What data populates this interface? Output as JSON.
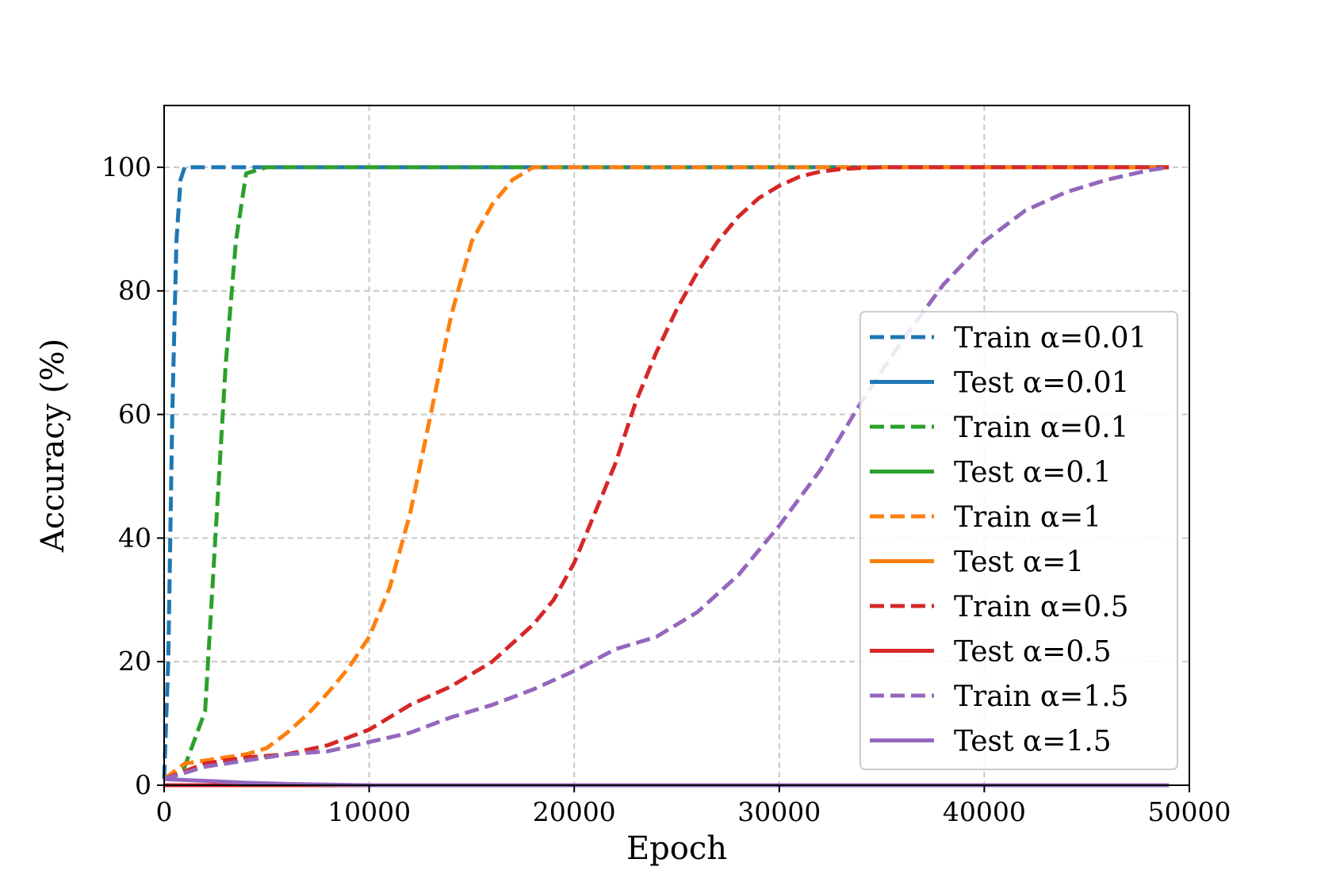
{
  "chart_data": {
    "type": "line",
    "title": "",
    "xlabel": "Epoch",
    "ylabel": "Accuracy (%)",
    "xlim": [
      0,
      50000
    ],
    "ylim": [
      0,
      110
    ],
    "xticks": [
      0,
      10000,
      20000,
      30000,
      40000,
      50000
    ],
    "yticks": [
      0,
      20,
      40,
      60,
      80,
      100
    ],
    "grid": true,
    "legend_placement": "center-right",
    "series": [
      {
        "name": "Train α=0.01",
        "style": "dashed",
        "color": "#1f77b4",
        "x": [
          0,
          200,
          400,
          600,
          800,
          1000,
          2000,
          5000,
          10000,
          20000,
          30000,
          40000,
          49000
        ],
        "y": [
          1,
          20,
          60,
          88,
          98,
          100,
          100,
          100,
          100,
          100,
          100,
          100,
          100
        ]
      },
      {
        "name": "Test α=0.01",
        "style": "solid",
        "color": "#1f77b4",
        "x": [
          0,
          49000
        ],
        "y": [
          0,
          0
        ]
      },
      {
        "name": "Train α=0.1",
        "style": "dashed",
        "color": "#2ca02c",
        "x": [
          0,
          1000,
          2000,
          2500,
          3000,
          3500,
          4000,
          5000,
          10000,
          20000,
          30000,
          40000,
          49000
        ],
        "y": [
          1,
          3,
          12,
          40,
          68,
          88,
          99,
          100,
          100,
          100,
          100,
          100,
          100
        ]
      },
      {
        "name": "Test α=0.1",
        "style": "solid",
        "color": "#2ca02c",
        "x": [
          0,
          49000
        ],
        "y": [
          0,
          0
        ]
      },
      {
        "name": "Train α=1",
        "style": "dashed",
        "color": "#ff7f0e",
        "x": [
          0,
          1000,
          2000,
          3000,
          4000,
          5000,
          6000,
          7000,
          8000,
          9000,
          10000,
          11000,
          12000,
          13000,
          14000,
          15000,
          16000,
          17000,
          18000,
          19000,
          20000,
          30000,
          40000,
          49000
        ],
        "y": [
          1,
          3.5,
          4,
          4.5,
          5,
          6,
          8.5,
          11.5,
          15,
          19,
          24,
          32,
          44,
          60,
          76,
          88,
          94,
          98,
          100,
          100,
          100,
          100,
          100,
          100
        ]
      },
      {
        "name": "Test α=1",
        "style": "solid",
        "color": "#ff7f0e",
        "x": [
          0,
          49000
        ],
        "y": [
          0,
          0
        ]
      },
      {
        "name": "Train α=0.5",
        "style": "dashed",
        "color": "#d62728",
        "x": [
          0,
          2000,
          4000,
          6000,
          8000,
          10000,
          12000,
          14000,
          16000,
          18000,
          19000,
          20000,
          21000,
          22000,
          23000,
          24000,
          25000,
          26000,
          27000,
          28000,
          29000,
          30000,
          31000,
          32000,
          33000,
          34000,
          35000,
          36000,
          40000,
          45000,
          49000
        ],
        "y": [
          1,
          3.5,
          4.5,
          5,
          6.5,
          9,
          13,
          16,
          20,
          26,
          30,
          36,
          44,
          52,
          62,
          70,
          77,
          83,
          88,
          92,
          95,
          97,
          98.5,
          99.3,
          99.7,
          99.9,
          100,
          100,
          100,
          100,
          100
        ]
      },
      {
        "name": "Test α=0.5",
        "style": "solid",
        "color": "#d62728",
        "x": [
          0,
          49000
        ],
        "y": [
          0,
          0
        ]
      },
      {
        "name": "Train α=1.5",
        "style": "dashed",
        "color": "#9467bd",
        "x": [
          0,
          2000,
          4000,
          6000,
          8000,
          10000,
          12000,
          14000,
          16000,
          18000,
          20000,
          22000,
          24000,
          26000,
          28000,
          30000,
          32000,
          34000,
          36000,
          38000,
          40000,
          42000,
          44000,
          46000,
          48000,
          49000
        ],
        "y": [
          1,
          3,
          4,
          5,
          5.5,
          7,
          8.5,
          11,
          13,
          15.5,
          18.5,
          22,
          24,
          28,
          34,
          42,
          51,
          62,
          72,
          81,
          88,
          93,
          96,
          98,
          99.5,
          100
        ]
      },
      {
        "name": "Test α=1.5",
        "style": "solid",
        "color": "#9467bd",
        "x": [
          0,
          2000,
          4000,
          6000,
          8000,
          10000,
          49000
        ],
        "y": [
          1,
          0.7,
          0.4,
          0.2,
          0.1,
          0,
          0
        ]
      }
    ]
  }
}
